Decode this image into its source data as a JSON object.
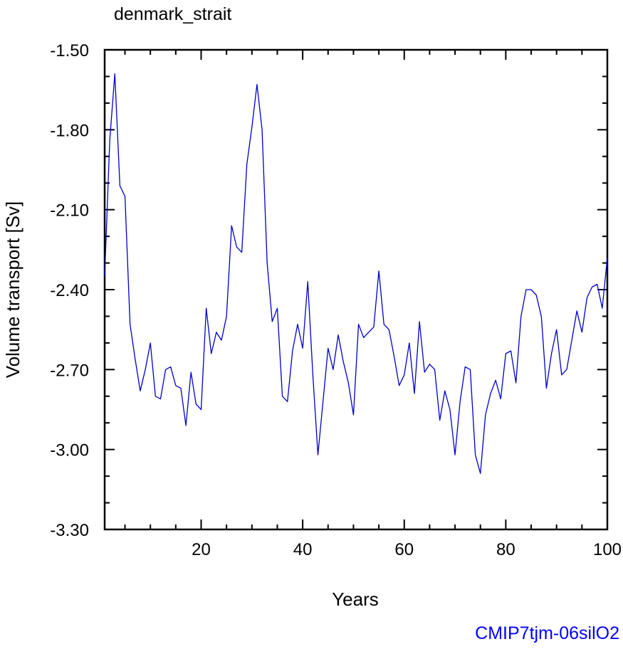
{
  "chart_data": {
    "type": "line",
    "title": "denmark_strait",
    "xlabel": "Years",
    "ylabel": "Volume transport [Sv]",
    "xlim": [
      1,
      100
    ],
    "ylim": [
      -3.3,
      -1.5
    ],
    "x_major_ticks": [
      20,
      40,
      60,
      80,
      100
    ],
    "x_tick_labels": [
      "20",
      "40",
      "60",
      "80",
      "100"
    ],
    "y_major_ticks": [
      -1.5,
      -1.8,
      -2.1,
      -2.4,
      -2.7,
      -3.0,
      -3.3
    ],
    "y_tick_labels": [
      "-1.50",
      "-1.80",
      "-2.10",
      "-2.40",
      "-2.70",
      "-3.00",
      "-3.30"
    ],
    "grid": false,
    "credit": "CMIP7tjm-06silO2",
    "credit_color": "#0000ff",
    "line_color": "#0000cc",
    "series": [
      {
        "x": [
          1,
          2,
          3,
          4,
          5,
          6,
          7,
          8,
          9,
          10,
          11,
          12,
          13,
          14,
          15,
          16,
          17,
          18,
          19,
          20,
          21,
          22,
          23,
          24,
          25,
          26,
          27,
          28,
          29,
          30,
          31,
          32,
          33,
          34,
          35,
          36,
          37,
          38,
          39,
          40,
          41,
          42,
          43,
          44,
          45,
          46,
          47,
          48,
          49,
          50,
          51,
          52,
          53,
          54,
          55,
          56,
          57,
          58,
          59,
          60,
          61,
          62,
          63,
          64,
          65,
          66,
          67,
          68,
          69,
          70,
          71,
          72,
          73,
          74,
          75,
          76,
          77,
          78,
          79,
          80,
          81,
          82,
          83,
          84,
          85,
          86,
          87,
          88,
          89,
          90,
          91,
          92,
          93,
          94,
          95,
          96,
          97,
          98,
          99,
          100
        ],
        "values": [
          -2.35,
          -1.84,
          -1.59,
          -2.01,
          -2.05,
          -2.53,
          -2.66,
          -2.78,
          -2.7,
          -2.6,
          -2.8,
          -2.81,
          -2.7,
          -2.69,
          -2.76,
          -2.77,
          -2.91,
          -2.71,
          -2.83,
          -2.85,
          -2.47,
          -2.64,
          -2.56,
          -2.59,
          -2.5,
          -2.16,
          -2.24,
          -2.26,
          -1.93,
          -1.79,
          -1.63,
          -1.8,
          -2.3,
          -2.52,
          -2.47,
          -2.8,
          -2.82,
          -2.63,
          -2.53,
          -2.62,
          -2.37,
          -2.72,
          -3.02,
          -2.82,
          -2.62,
          -2.7,
          -2.57,
          -2.67,
          -2.75,
          -2.87,
          -2.53,
          -2.58,
          -2.56,
          -2.54,
          -2.33,
          -2.53,
          -2.55,
          -2.65,
          -2.76,
          -2.72,
          -2.6,
          -2.79,
          -2.52,
          -2.71,
          -2.68,
          -2.7,
          -2.89,
          -2.78,
          -2.85,
          -3.02,
          -2.82,
          -2.69,
          -2.7,
          -3.02,
          -3.09,
          -2.87,
          -2.79,
          -2.74,
          -2.81,
          -2.64,
          -2.63,
          -2.75,
          -2.5,
          -2.4,
          -2.4,
          -2.42,
          -2.5,
          -2.77,
          -2.64,
          -2.55,
          -2.72,
          -2.7,
          -2.59,
          -2.48,
          -2.56,
          -2.43,
          -2.39,
          -2.38,
          -2.47,
          -2.28
        ]
      }
    ]
  }
}
